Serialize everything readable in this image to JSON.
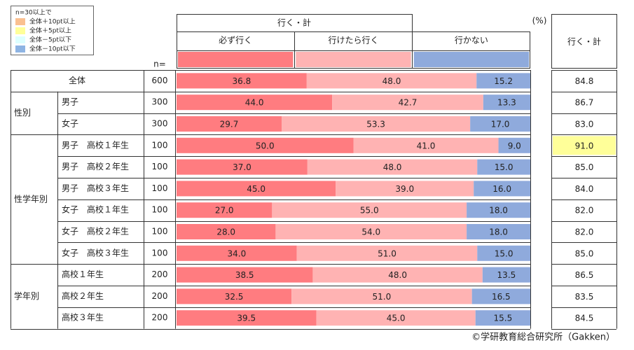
{
  "chart_data": {
    "type": "bar",
    "legend_box": {
      "title": "n=30以上で",
      "items": [
        {
          "label": "全体＋10pt以上",
          "color": "#fac090"
        },
        {
          "label": "全体＋5pt以上",
          "color": "#ffff99"
        },
        {
          "label": "全体－5pt以下",
          "color": "#ddffff"
        },
        {
          "label": "全体－10pt以下",
          "color": "#8eb4e3"
        }
      ]
    },
    "group_header": "行く・計",
    "unit": "(%)",
    "n_label": "n=",
    "total_header": "行く・計",
    "xlim": [
      0,
      100
    ],
    "categories": [
      "全体",
      "男子",
      "女子",
      "男子　高校１年生",
      "男子　高校２年生",
      "男子　高校３年生",
      "女子　高校１年生",
      "女子　高校２年生",
      "女子　高校３年生",
      "高校１年生",
      "高校２年生",
      "高校３年生"
    ],
    "row_groups": [
      {
        "label": null,
        "rows": 1
      },
      {
        "label": "性別",
        "rows": 2
      },
      {
        "label": "性学年別",
        "rows": 6
      },
      {
        "label": "学年別",
        "rows": 3
      }
    ],
    "n": [
      600,
      300,
      300,
      100,
      100,
      100,
      100,
      100,
      100,
      200,
      200,
      200
    ],
    "series": [
      {
        "name": "必ず行く",
        "color": "#ff7c80",
        "values": [
          36.8,
          44,
          29.7,
          50,
          37,
          45,
          27,
          28,
          34,
          38.5,
          32.5,
          39.5
        ],
        "value_labels": [
          "36.8",
          "44.0",
          "29.7",
          "50.0",
          "37.0",
          "45.0",
          "27.0",
          "28.0",
          "34.0",
          "38.5",
          "32.5",
          "39.5"
        ]
      },
      {
        "name": "行けたら行く",
        "color": "#ffb3b3",
        "values": [
          48,
          42.7,
          53.3,
          41,
          48,
          39,
          55,
          54,
          51,
          48,
          51,
          45
        ],
        "value_labels": [
          "48.0",
          "42.7",
          "53.3",
          "41.0",
          "48.0",
          "39.0",
          "55.0",
          "54.0",
          "51.0",
          "48.0",
          "51.0",
          "45.0"
        ]
      },
      {
        "name": "行かない",
        "color": "#8faadc",
        "values": [
          15.2,
          13.3,
          17,
          9,
          15,
          16,
          18,
          18,
          15,
          13.5,
          16.5,
          15.5
        ],
        "value_labels": [
          "15.2",
          "13.3",
          "17.0",
          "9.0",
          "15.0",
          "16.0",
          "18.0",
          "18.0",
          "15.0",
          "13.5",
          "16.5",
          "15.5"
        ]
      }
    ],
    "totals": [
      84.8,
      86.7,
      83,
      91,
      85,
      84,
      82,
      82,
      85,
      86.5,
      83.5,
      84.5
    ],
    "totals_labels": [
      "84.8",
      "86.7",
      "83.0",
      "91.0",
      "85.0",
      "84.0",
      "82.0",
      "82.0",
      "85.0",
      "86.5",
      "83.5",
      "84.5"
    ],
    "totals_highlight": [
      null,
      null,
      null,
      "#ffff99",
      null,
      null,
      null,
      null,
      null,
      null,
      null,
      null
    ],
    "source": "©学研教育総合研究所（Gakken）"
  }
}
